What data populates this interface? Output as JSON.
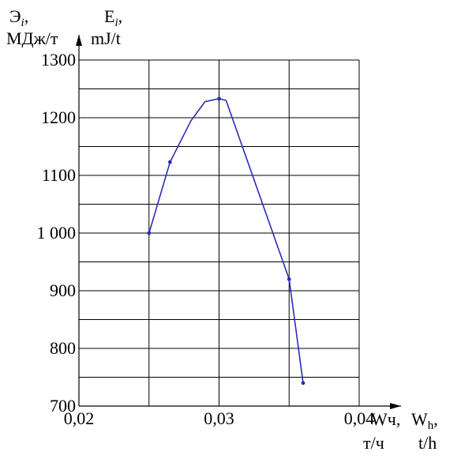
{
  "chart_data": {
    "type": "line",
    "title": "",
    "y_label_ru": {
      "main": "Э",
      "sub": "i",
      "suffix": ",",
      "unit": "МДж/т"
    },
    "y_label_en": {
      "main": "E",
      "sub": "i",
      "suffix": ",",
      "unit": "mJ/t"
    },
    "x_label_ru": {
      "main": "Wч,",
      "unit": "т/ч"
    },
    "x_label_en": {
      "main": "W",
      "sub": "h",
      "suffix": ",",
      "unit": "t/h"
    },
    "x_ticks": [
      {
        "value": 0.02,
        "label": "0,02"
      },
      {
        "value": 0.03,
        "label": "0,03"
      },
      {
        "value": 0.04,
        "label": "0,04"
      }
    ],
    "y_ticks": [
      {
        "value": 700,
        "label": "700"
      },
      {
        "value": 800,
        "label": "800"
      },
      {
        "value": 900,
        "label": "900"
      },
      {
        "value": 1000,
        "label": "1 000"
      },
      {
        "value": 1100,
        "label": "1100"
      },
      {
        "value": 1200,
        "label": "1200"
      },
      {
        "value": 1300,
        "label": "1300"
      }
    ],
    "xlim": [
      0.02,
      0.04
    ],
    "ylim": [
      700,
      1300
    ],
    "grid": true,
    "series": [
      {
        "color": "#2b2bb8",
        "points": [
          {
            "x": 0.025,
            "y": 1000
          },
          {
            "x": 0.0265,
            "y": 1123
          },
          {
            "x": 0.028,
            "y": 1195
          },
          {
            "x": 0.029,
            "y": 1228
          },
          {
            "x": 0.03,
            "y": 1233
          },
          {
            "x": 0.0305,
            "y": 1230
          },
          {
            "x": 0.035,
            "y": 920
          },
          {
            "x": 0.036,
            "y": 740
          }
        ],
        "markers": [
          {
            "x": 0.025,
            "y": 1000
          },
          {
            "x": 0.0265,
            "y": 1123
          },
          {
            "x": 0.03,
            "y": 1233
          },
          {
            "x": 0.035,
            "y": 920
          },
          {
            "x": 0.036,
            "y": 740
          }
        ]
      }
    ]
  }
}
